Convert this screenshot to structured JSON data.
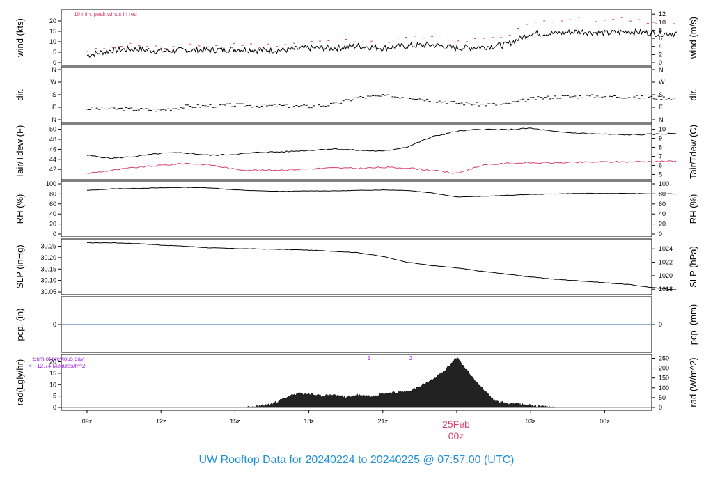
{
  "colors": {
    "frame": "#000000",
    "gust": "#d6406c",
    "dew": "#d6406c",
    "precip": "#2f5fbf",
    "annotation": "#a020f0",
    "title": "#1f8fd6",
    "date": "#d6406c"
  },
  "footer": {
    "title": "UW Rooftop Data for 20240224  to  20240225 @ 07:57:00  (UTC)",
    "date_label": "25Feb",
    "date_sublabel": "00z"
  },
  "chart_data": [
    {
      "type": "line",
      "id": "wind",
      "ylabel": "wind (kts)",
      "ylabel_right": "wind (m/s)",
      "annotation": "10 min. peak winds in red",
      "yticks": [
        0,
        5,
        10,
        15,
        20
      ],
      "yticks_right": [
        0,
        2,
        4,
        6,
        8,
        10,
        12
      ],
      "ylim": [
        0,
        24
      ],
      "x": [
        0,
        1,
        2,
        3,
        4,
        5,
        6,
        7,
        8,
        9,
        10,
        11,
        12,
        13,
        14,
        15,
        16,
        17,
        18,
        19,
        20,
        21,
        22,
        23,
        24
      ],
      "series": [
        {
          "role": "mean",
          "values": [
            3.5,
            6,
            6.5,
            5.5,
            6,
            6,
            6.5,
            6,
            6,
            7,
            7,
            8,
            7,
            8,
            8.5,
            7,
            7.5,
            8.5,
            14,
            14,
            15,
            14,
            15,
            14,
            14
          ]
        },
        {
          "role": "peak",
          "values": [
            5,
            8,
            9,
            7,
            8,
            8,
            9,
            8,
            9,
            10,
            10,
            11,
            10,
            12,
            12,
            10,
            11,
            12,
            20,
            20,
            21,
            20,
            21,
            19,
            19
          ]
        }
      ]
    },
    {
      "type": "scatter",
      "id": "dir",
      "ylabel": "dir.",
      "ylabel_right": "dir.",
      "yticks": [
        "N",
        "E",
        "S",
        "W",
        "N"
      ],
      "ylim": [
        0,
        360
      ],
      "x": [
        0,
        1,
        2,
        3,
        4,
        5,
        6,
        7,
        8,
        9,
        10,
        11,
        12,
        13,
        14,
        15,
        16,
        17,
        18,
        19,
        20,
        21,
        22,
        23,
        24
      ],
      "values": [
        80,
        80,
        75,
        70,
        95,
        100,
        105,
        100,
        100,
        95,
        110,
        160,
        170,
        165,
        140,
        120,
        110,
        110,
        150,
        165,
        168,
        170,
        165,
        160,
        155
      ]
    },
    {
      "type": "line",
      "id": "temp",
      "ylabel": "Tair/Tdew (F)",
      "ylabel_right": "Tair/Tdew (C)",
      "yticks": [
        42,
        44,
        46,
        48,
        50
      ],
      "yticks_right": [
        5,
        6,
        7,
        8,
        9,
        10
      ],
      "ylim": [
        40.5,
        50.5
      ],
      "x": [
        0,
        1,
        2,
        3,
        4,
        5,
        6,
        7,
        8,
        9,
        10,
        11,
        12,
        13,
        14,
        15,
        16,
        17,
        18,
        19,
        20,
        21,
        22,
        23,
        24
      ],
      "series": [
        {
          "role": "air",
          "values": [
            44.8,
            44.2,
            44.6,
            45.2,
            45.3,
            44.8,
            45.0,
            45.4,
            45.5,
            45.8,
            46.1,
            45.8,
            45.6,
            46.5,
            48.5,
            49.6,
            50.0,
            49.9,
            50.2,
            49.5,
            49.2,
            49.0,
            48.9,
            49.0,
            49.2
          ]
        },
        {
          "role": "dew",
          "values": [
            41.2,
            41.8,
            42.4,
            42.8,
            43.2,
            42.9,
            42.0,
            41.8,
            41.9,
            42.1,
            42.3,
            42.2,
            42.4,
            42.3,
            41.8,
            41.2,
            42.8,
            43.2,
            43.3,
            43.3,
            43.4,
            43.5,
            43.5,
            43.6,
            43.6
          ]
        }
      ]
    },
    {
      "type": "line",
      "id": "rh",
      "ylabel": "RH (%)",
      "ylabel_right": "RH (%)",
      "yticks": [
        0,
        20,
        40,
        60,
        80,
        100
      ],
      "yticks_right": [
        0,
        20,
        40,
        60,
        80,
        100
      ],
      "ylim": [
        0,
        100
      ],
      "x": [
        0,
        1,
        2,
        3,
        4,
        5,
        6,
        7,
        8,
        9,
        10,
        11,
        12,
        13,
        14,
        15,
        16,
        17,
        18,
        19,
        20,
        21,
        22,
        23,
        24
      ],
      "values": [
        87,
        90,
        91,
        92,
        93,
        92,
        88,
        86,
        85,
        86,
        86,
        87,
        88,
        87,
        82,
        74,
        75,
        77,
        79,
        80,
        81,
        81,
        81,
        80,
        80
      ]
    },
    {
      "type": "line",
      "id": "slp",
      "ylabel": "SLP (inHg)",
      "ylabel_right": "SLP (hPa)",
      "yticks": [
        30.05,
        30.1,
        30.15,
        30.2,
        30.25
      ],
      "yticks_right": [
        1018,
        1020,
        1022,
        1024
      ],
      "ylim": [
        30.05,
        30.27
      ],
      "x": [
        0,
        1,
        2,
        3,
        4,
        5,
        6,
        7,
        8,
        9,
        10,
        11,
        12,
        13,
        14,
        15,
        16,
        17,
        18,
        19,
        20,
        21,
        22,
        23,
        24
      ],
      "values": [
        30.265,
        30.265,
        30.262,
        30.255,
        30.25,
        30.243,
        30.24,
        30.238,
        30.236,
        30.233,
        30.228,
        30.222,
        30.205,
        30.18,
        30.165,
        30.155,
        30.14,
        30.128,
        30.115,
        30.105,
        30.098,
        30.09,
        30.082,
        30.068,
        30.058
      ]
    },
    {
      "type": "line",
      "id": "pcp",
      "ylabel": "pcp. (in)",
      "ylabel_right": "pcp. (mm)",
      "yticks": [
        0
      ],
      "yticks_right": [
        0
      ],
      "ylim": [
        -1,
        1
      ],
      "x": [
        0,
        24
      ],
      "values": [
        0,
        0
      ]
    },
    {
      "type": "area",
      "id": "rad",
      "ylabel": "rad(Lgly/hr)",
      "ylabel_right": "rad (W/m^2)",
      "annotation_top": "Sum of previous day",
      "annotation_bottom": "<-- 12.74 MJoules/m^2",
      "markers": [
        "1",
        "2"
      ],
      "yticks": [
        0,
        5,
        10,
        15,
        20
      ],
      "yticks_right": [
        0,
        50,
        100,
        150,
        200,
        250
      ],
      "ylim": [
        0,
        22
      ],
      "x": [
        6.5,
        7,
        7.5,
        8,
        8.5,
        9,
        9.5,
        10,
        10.5,
        11,
        11.5,
        12,
        12.5,
        13,
        13.5,
        14,
        14.5,
        15,
        15.5,
        16,
        16.5,
        17,
        17.5,
        18,
        18.5,
        19
      ],
      "values": [
        0,
        0.5,
        1.5,
        4,
        6,
        6,
        5,
        5.5,
        4.5,
        5.5,
        5,
        6,
        6.5,
        7,
        9,
        12,
        16,
        22,
        15,
        9,
        3,
        2,
        1.5,
        1,
        0.3,
        0
      ],
      "xticks": [
        "09z",
        "12z",
        "15z",
        "18z",
        "21z",
        "00z",
        "03z",
        "06z"
      ]
    }
  ]
}
